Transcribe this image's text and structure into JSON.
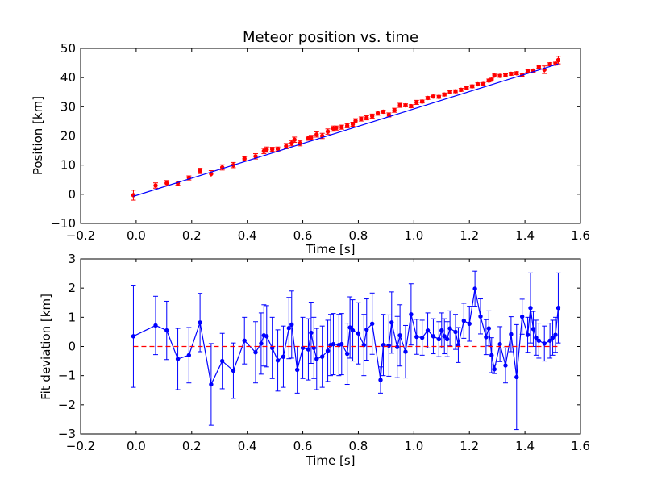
{
  "chart_data": [
    {
      "type": "scatter",
      "title": "Meteor position vs. time",
      "xlabel": "Time [s]",
      "ylabel": "Position [km]",
      "xlim": [
        -0.2,
        1.6
      ],
      "ylim": [
        -10,
        50
      ],
      "xticks": [
        -0.2,
        0.0,
        0.2,
        0.4,
        0.6,
        0.8,
        1.0,
        1.2,
        1.4,
        1.6
      ],
      "xticklabels": [
        "−0.2",
        "0.0",
        "0.2",
        "0.4",
        "0.6",
        "0.8",
        "1.0",
        "1.2",
        "1.4",
        "1.6"
      ],
      "yticks": [
        -10,
        0,
        10,
        20,
        30,
        40,
        50
      ],
      "yticklabels": [
        "−10",
        "0",
        "10",
        "20",
        "30",
        "40",
        "50"
      ],
      "grid": false,
      "series": [
        {
          "kind": "points_with_errorbars",
          "color": "#ff0000",
          "x": [
            -0.01,
            0.07,
            0.11,
            0.15,
            0.19,
            0.23,
            0.27,
            0.31,
            0.35,
            0.39,
            0.43,
            0.46,
            0.47,
            0.49,
            0.51,
            0.54,
            0.56,
            0.57,
            0.59,
            0.62,
            0.63,
            0.65,
            0.67,
            0.69,
            0.71,
            0.72,
            0.74,
            0.76,
            0.78,
            0.79,
            0.81,
            0.83,
            0.85,
            0.87,
            0.89,
            0.91,
            0.93,
            0.95,
            0.97,
            0.99,
            1.01,
            1.03,
            1.05,
            1.07,
            1.09,
            1.11,
            1.13,
            1.15,
            1.17,
            1.19,
            1.21,
            1.23,
            1.25,
            1.27,
            1.28,
            1.29,
            1.31,
            1.33,
            1.35,
            1.37,
            1.39,
            1.41,
            1.43,
            1.45,
            1.47,
            1.49,
            1.51,
            1.52
          ],
          "y": [
            -0.3,
            3.0,
            3.8,
            3.8,
            5.6,
            8.0,
            7.0,
            9.2,
            10.0,
            12.2,
            13.0,
            14.8,
            15.3,
            15.4,
            15.5,
            16.5,
            17.5,
            18.7,
            17.5,
            19.2,
            19.5,
            20.5,
            20.0,
            21.5,
            22.5,
            22.7,
            23.0,
            23.5,
            24.0,
            25.2,
            25.8,
            26.2,
            26.8,
            27.8,
            28.3,
            27.2,
            28.8,
            30.5,
            30.5,
            30.2,
            31.5,
            31.8,
            33.0,
            33.5,
            33.4,
            34.2,
            35.0,
            35.3,
            35.8,
            36.4,
            37.0,
            37.7,
            37.8,
            39.0,
            39.3,
            40.7,
            40.6,
            40.8,
            41.3,
            41.5,
            40.9,
            42.3,
            42.4,
            43.7,
            42.7,
            44.6,
            44.8,
            46.0
          ],
          "yerr": [
            1.7,
            0.9,
            0.9,
            0.7,
            0.7,
            0.9,
            1.1,
            0.9,
            0.9,
            0.7,
            0.9,
            0.9,
            0.9,
            0.7,
            0.7,
            0.9,
            0.9,
            0.9,
            0.9,
            0.7,
            0.7,
            0.9,
            0.9,
            0.9,
            0.9,
            0.7,
            0.7,
            0.7,
            0.7,
            0.7,
            0.7,
            0.7,
            0.7,
            0.7,
            0.5,
            0.7,
            0.7,
            0.7,
            0.5,
            0.5,
            0.7,
            0.5,
            0.5,
            0.5,
            0.5,
            0.5,
            0.5,
            0.5,
            0.5,
            0.5,
            0.5,
            0.5,
            0.5,
            0.5,
            0.5,
            0.5,
            0.5,
            0.5,
            0.5,
            0.5,
            0.5,
            0.5,
            0.5,
            0.5,
            1.3,
            0.5,
            0.5,
            1.3
          ]
        },
        {
          "kind": "fit_line",
          "color": "#0000ff",
          "x": [
            -0.01,
            1.52
          ],
          "y": [
            -0.7,
            44.7
          ]
        }
      ]
    },
    {
      "type": "line",
      "title": "",
      "xlabel": "Time [s]",
      "ylabel": "Fit deviation [km]",
      "xlim": [
        -0.2,
        1.6
      ],
      "ylim": [
        -3,
        3
      ],
      "xticks": [
        -0.2,
        0.0,
        0.2,
        0.4,
        0.6,
        0.8,
        1.0,
        1.2,
        1.4,
        1.6
      ],
      "xticklabels": [
        "−0.2",
        "0.0",
        "0.2",
        "0.4",
        "0.6",
        "0.8",
        "1.0",
        "1.2",
        "1.4",
        "1.6"
      ],
      "yticks": [
        -3,
        -2,
        -1,
        0,
        1,
        2,
        3
      ],
      "yticklabels": [
        "−3",
        "−2",
        "−1",
        "0",
        "1",
        "2",
        "3"
      ],
      "grid": false,
      "series": [
        {
          "kind": "line_with_errorbars",
          "color": "#0000ff",
          "x": [
            -0.01,
            0.07,
            0.11,
            0.15,
            0.19,
            0.23,
            0.27,
            0.31,
            0.35,
            0.39,
            0.43,
            0.45,
            0.46,
            0.47,
            0.49,
            0.51,
            0.53,
            0.55,
            0.56,
            0.58,
            0.6,
            0.62,
            0.63,
            0.64,
            0.65,
            0.67,
            0.69,
            0.7,
            0.71,
            0.73,
            0.74,
            0.76,
            0.77,
            0.78,
            0.8,
            0.82,
            0.83,
            0.85,
            0.88,
            0.89,
            0.91,
            0.92,
            0.94,
            0.95,
            0.97,
            0.99,
            1.01,
            1.03,
            1.05,
            1.07,
            1.09,
            1.1,
            1.11,
            1.12,
            1.13,
            1.15,
            1.16,
            1.18,
            1.2,
            1.22,
            1.24,
            1.26,
            1.27,
            1.28,
            1.29,
            1.31,
            1.33,
            1.35,
            1.37,
            1.39,
            1.41,
            1.42,
            1.43,
            1.44,
            1.45,
            1.47,
            1.49,
            1.5,
            1.51,
            1.52
          ],
          "y": [
            0.35,
            0.72,
            0.55,
            -0.43,
            -0.3,
            0.82,
            -1.3,
            -0.5,
            -0.83,
            0.2,
            -0.2,
            0.1,
            0.38,
            0.35,
            -0.05,
            -0.48,
            -0.35,
            0.63,
            0.75,
            -0.8,
            -0.05,
            -0.1,
            0.47,
            -0.05,
            -0.43,
            -0.35,
            -0.15,
            0.05,
            0.08,
            0.05,
            0.08,
            -0.25,
            0.65,
            0.55,
            0.45,
            0.05,
            0.58,
            0.78,
            -1.15,
            0.05,
            0.03,
            0.82,
            -0.02,
            0.38,
            -0.18,
            1.1,
            0.33,
            0.3,
            0.55,
            0.35,
            0.25,
            0.55,
            0.35,
            0.25,
            0.62,
            0.5,
            0.05,
            0.88,
            0.78,
            1.98,
            1.03,
            0.32,
            0.62,
            -0.3,
            -0.78,
            0.08,
            -0.65,
            0.42,
            -1.05,
            1.02,
            0.4,
            1.32,
            0.6,
            0.3,
            0.2,
            0.1,
            0.2,
            0.3,
            0.4,
            1.32
          ],
          "yerr": [
            1.75,
            1.0,
            1.0,
            1.05,
            0.95,
            1.0,
            1.4,
            0.95,
            0.95,
            0.8,
            1.05,
            1.05,
            1.05,
            1.05,
            1.05,
            1.05,
            1.05,
            1.05,
            1.15,
            0.8,
            1.05,
            1.05,
            1.05,
            1.05,
            1.05,
            1.05,
            1.05,
            1.05,
            1.05,
            1.05,
            1.05,
            1.05,
            1.05,
            1.05,
            1.05,
            1.05,
            1.05,
            1.05,
            0.45,
            1.05,
            1.05,
            1.05,
            1.05,
            1.05,
            0.9,
            1.05,
            0.6,
            0.6,
            0.6,
            0.6,
            0.6,
            0.6,
            0.6,
            0.6,
            0.6,
            0.6,
            0.6,
            0.6,
            0.6,
            0.6,
            0.6,
            0.6,
            0.6,
            0.6,
            0.15,
            0.6,
            0.6,
            0.6,
            1.8,
            0.6,
            0.6,
            1.2,
            0.6,
            0.6,
            0.6,
            0.6,
            0.6,
            0.6,
            0.6,
            1.2
          ]
        },
        {
          "kind": "zero_line",
          "color": "#ff0000",
          "style": "dashed",
          "x": [
            -0.01,
            1.52
          ],
          "y": [
            0,
            0
          ]
        }
      ]
    }
  ]
}
